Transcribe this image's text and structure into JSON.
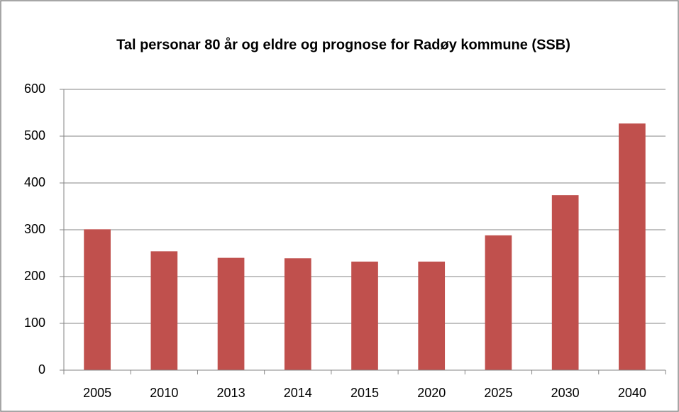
{
  "chart_data": {
    "type": "bar",
    "title": "Tal personar 80 år og eldre og prognose for Radøy kommune (SSB)",
    "categories": [
      "2005",
      "2010",
      "2013",
      "2014",
      "2015",
      "2020",
      "2025",
      "2030",
      "2040"
    ],
    "values": [
      301,
      254,
      240,
      239,
      232,
      232,
      288,
      374,
      527
    ],
    "color": "#c0504d",
    "ylim": [
      0,
      600
    ],
    "yticks": [
      0,
      100,
      200,
      300,
      400,
      500,
      600
    ],
    "grid": true
  }
}
